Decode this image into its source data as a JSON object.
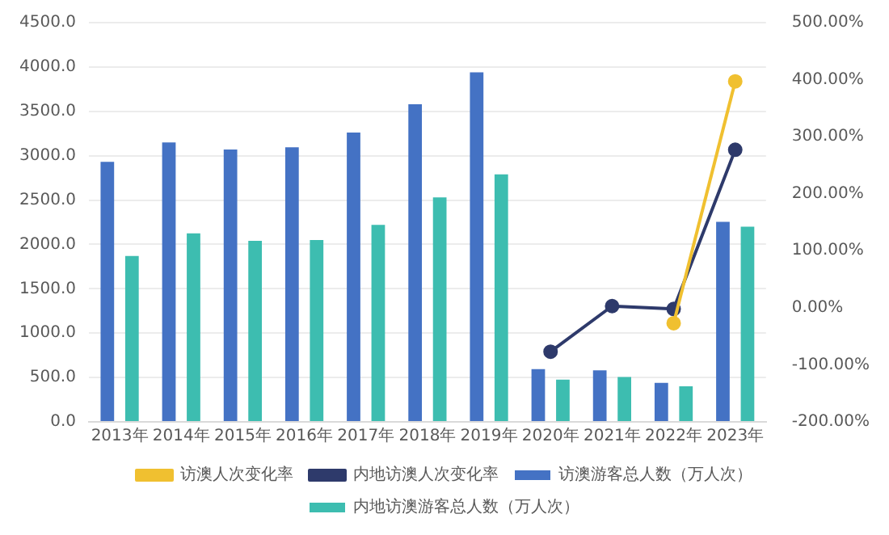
{
  "chart_data": {
    "type": "bar",
    "categories": [
      "2013年",
      "2014年",
      "2015年",
      "2016年",
      "2017年",
      "2018年",
      "2019年",
      "2020年",
      "2021年",
      "2022年",
      "2023年"
    ],
    "series": [
      {
        "name": "访澳游客总人数（万人次）",
        "color": "#4472c4",
        "values": [
          2930,
          3150,
          3070,
          3095,
          3260,
          3580,
          3940,
          595,
          580,
          440,
          2255
        ]
      },
      {
        "name": "内地访澳游客总人数（万人次）",
        "color": "#3dbdb0",
        "values": [
          1870,
          2125,
          2040,
          2050,
          2220,
          2530,
          2790,
          475,
          505,
          400,
          2200
        ]
      },
      {
        "name": "访澳人次变化率",
        "type": "line",
        "axis": "y2",
        "color": "#f0c030",
        "values": [
          null,
          null,
          null,
          null,
          null,
          null,
          null,
          null,
          null,
          -27,
          397
        ]
      },
      {
        "name": "内地访澳人次变化率",
        "type": "line",
        "axis": "y2",
        "color": "#2e3a6b",
        "values": [
          null,
          null,
          null,
          null,
          null,
          null,
          null,
          -77,
          3,
          -2,
          277
        ]
      }
    ],
    "ylim": [
      0,
      4500
    ],
    "yticks": [
      {
        "value": 0,
        "label": "0.0"
      },
      {
        "value": 500,
        "label": "500.0"
      },
      {
        "value": 1000,
        "label": "1000.0"
      },
      {
        "value": 1500,
        "label": "1500.0"
      },
      {
        "value": 2000,
        "label": "2000.0"
      },
      {
        "value": 2500,
        "label": "2500.0"
      },
      {
        "value": 3000,
        "label": "3000.0"
      },
      {
        "value": 3500,
        "label": "3500.0"
      },
      {
        "value": 4000,
        "label": "4000.0"
      },
      {
        "value": 4500,
        "label": "4500.0"
      }
    ],
    "y2lim": [
      -200,
      500
    ],
    "y2ticks": [
      {
        "value": -200,
        "label": "-200.00%"
      },
      {
        "value": -100,
        "label": "-100.00%"
      },
      {
        "value": 0,
        "label": "0.00%"
      },
      {
        "value": 100,
        "label": "100.00%"
      },
      {
        "value": 200,
        "label": "200.00%"
      },
      {
        "value": 300,
        "label": "300.00%"
      },
      {
        "value": 400,
        "label": "400.00%"
      },
      {
        "value": 500,
        "label": "500.00%"
      }
    ],
    "grid": "y",
    "legend": "bottom",
    "marker": "circle"
  }
}
